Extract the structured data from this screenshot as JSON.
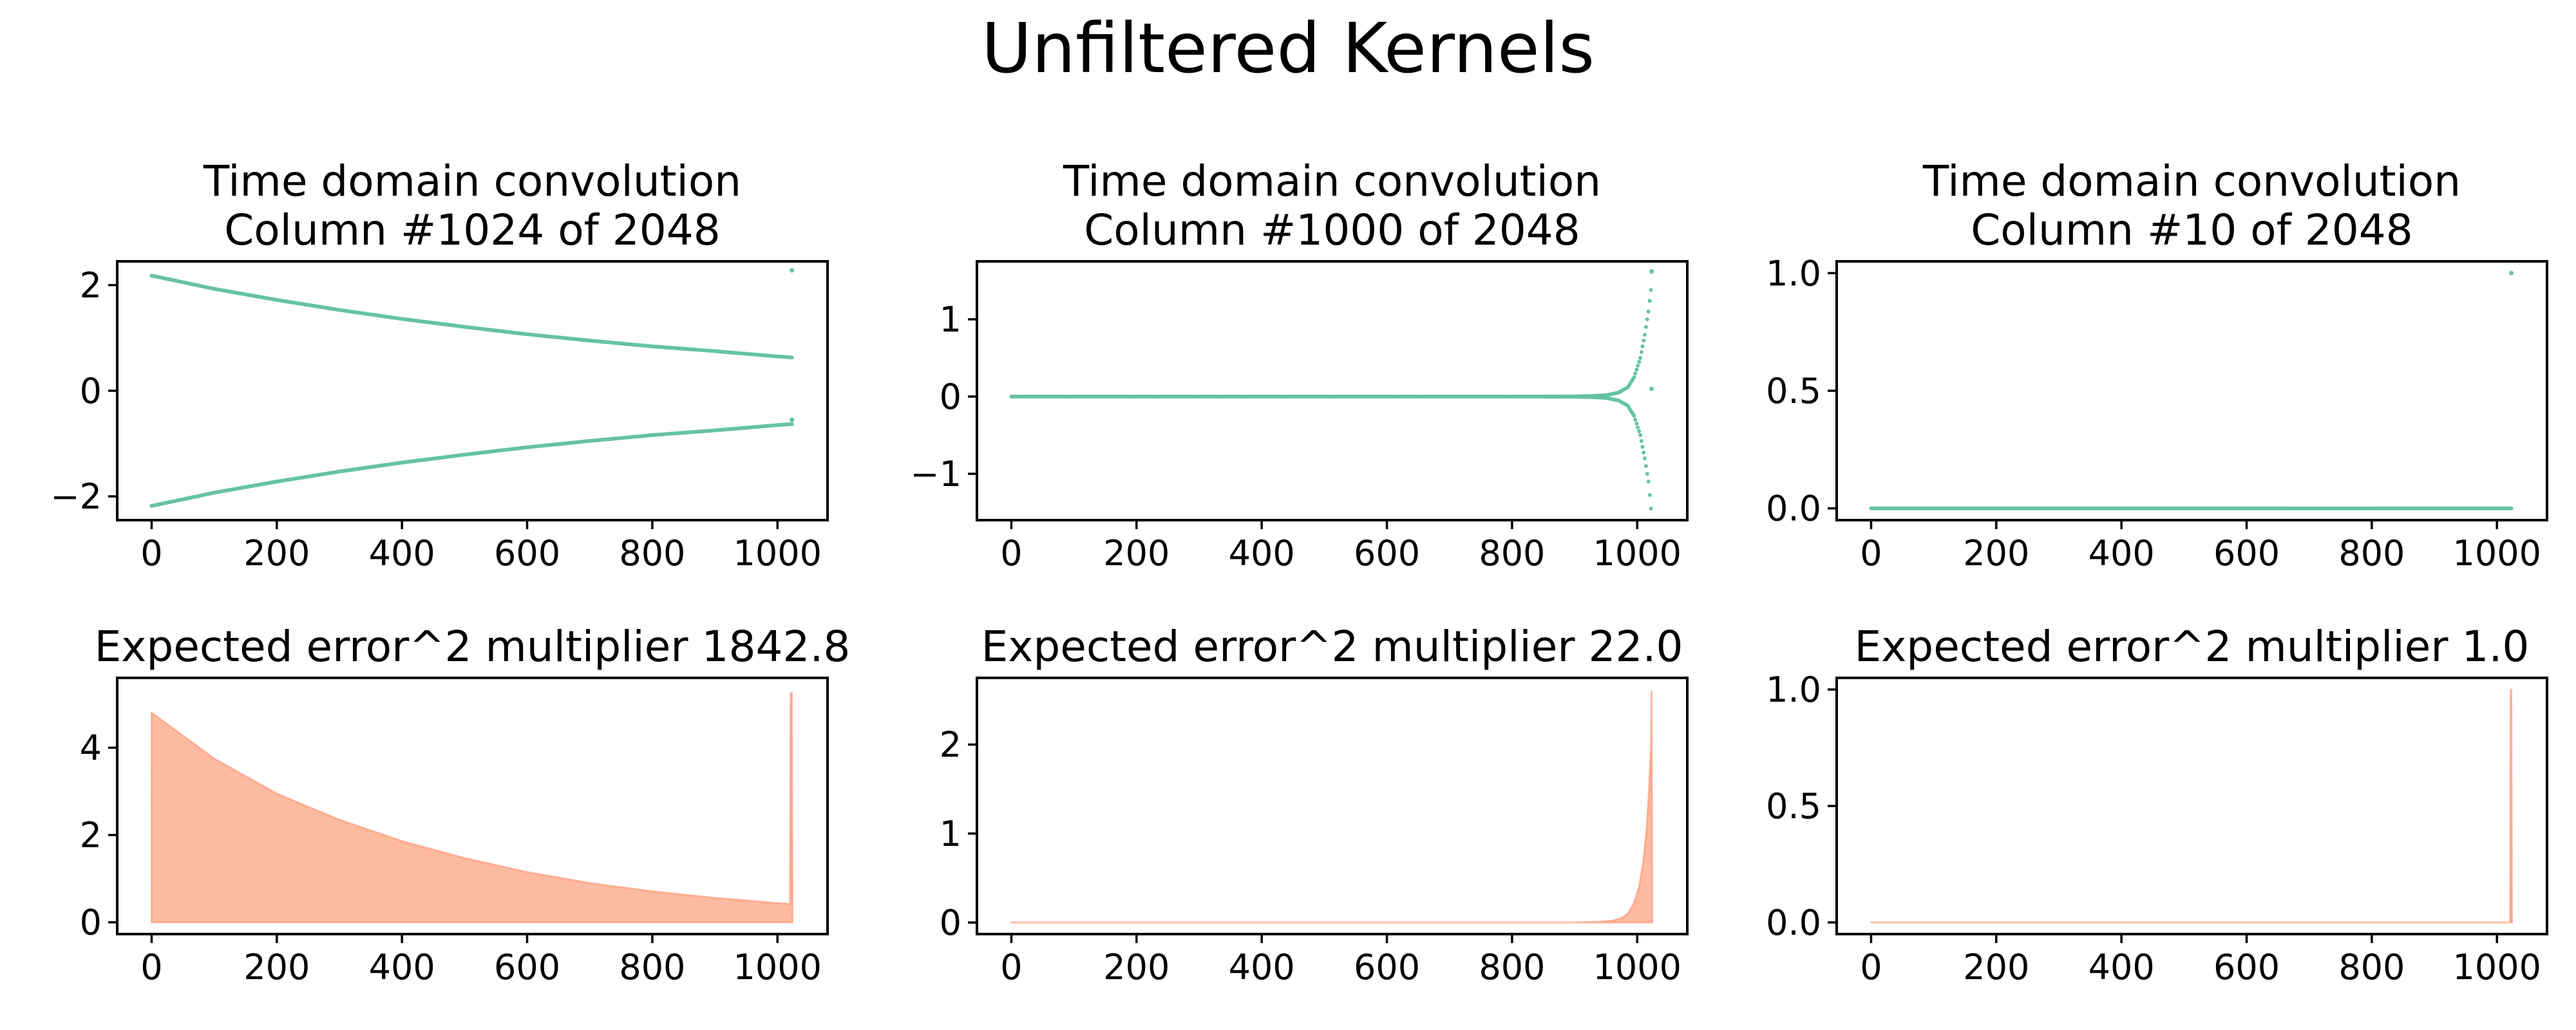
{
  "figure": {
    "title": "Unfiltered Kernels",
    "colors": {
      "scatter": "#66c2a5",
      "area_fill": "#fcbba1",
      "area_line": "#fc9272"
    }
  },
  "chart_data": [
    {
      "type": "scatter",
      "title_lines": [
        "Time domain convolution",
        "Column #1024 of 2048"
      ],
      "xlabel": "",
      "ylabel": "",
      "xlim": [
        -55,
        1080
      ],
      "ylim": [
        -2.45,
        2.45
      ],
      "xticks": [
        0,
        200,
        400,
        600,
        800,
        1000
      ],
      "xtick_labels": [
        "0",
        "200",
        "400",
        "600",
        "800",
        "1000"
      ],
      "yticks": [
        -2,
        0,
        2
      ],
      "ytick_labels": [
        "−2",
        "0",
        "2"
      ],
      "series": [
        {
          "x": [
            0,
            100,
            200,
            300,
            400,
            500,
            600,
            700,
            800,
            900,
            1000,
            1023
          ],
          "y": [
            2.18,
            1.93,
            1.72,
            1.53,
            1.36,
            1.21,
            1.07,
            0.95,
            0.84,
            0.75,
            0.65,
            0.63
          ]
        },
        {
          "x": [
            0,
            100,
            200,
            300,
            400,
            500,
            600,
            700,
            800,
            900,
            1000,
            1023
          ],
          "y": [
            -2.18,
            -1.93,
            -1.72,
            -1.53,
            -1.36,
            -1.21,
            -1.07,
            -0.95,
            -0.84,
            -0.75,
            -0.65,
            -0.63
          ]
        }
      ],
      "points": [
        {
          "x": 1023,
          "y": 2.28
        },
        {
          "x": 1023,
          "y": -0.55
        }
      ]
    },
    {
      "type": "scatter",
      "title_lines": [
        "Time domain convolution",
        "Column #1000 of 2048"
      ],
      "xlabel": "",
      "ylabel": "",
      "xlim": [
        -55,
        1080
      ],
      "ylim": [
        -1.6,
        1.75
      ],
      "xticks": [
        0,
        200,
        400,
        600,
        800,
        1000
      ],
      "xtick_labels": [
        "0",
        "200",
        "400",
        "600",
        "800",
        "1000"
      ],
      "yticks": [
        -1,
        0,
        1
      ],
      "ytick_labels": [
        "−1",
        "0",
        "1"
      ],
      "series": [
        {
          "x": [
            0,
            850,
            900,
            930,
            950,
            970,
            985,
            995,
            1005,
            1012,
            1018,
            1022
          ],
          "y": [
            0,
            0,
            0.003,
            0.008,
            0.018,
            0.05,
            0.12,
            0.25,
            0.5,
            0.8,
            1.1,
            1.38
          ]
        },
        {
          "x": [
            0,
            850,
            900,
            930,
            950,
            970,
            985,
            995,
            1005,
            1012,
            1018,
            1022
          ],
          "y": [
            0,
            0,
            -0.003,
            -0.008,
            -0.018,
            -0.05,
            -0.12,
            -0.25,
            -0.5,
            -0.8,
            -1.1,
            -1.45
          ]
        }
      ],
      "points": [
        {
          "x": 1023,
          "y": 1.62
        },
        {
          "x": 1023,
          "y": 0.1
        }
      ]
    },
    {
      "type": "scatter",
      "title_lines": [
        "Time domain convolution",
        "Column #10 of 2048"
      ],
      "xlabel": "",
      "ylabel": "",
      "xlim": [
        -55,
        1080
      ],
      "ylim": [
        -0.05,
        1.05
      ],
      "xticks": [
        0,
        200,
        400,
        600,
        800,
        1000
      ],
      "xtick_labels": [
        "0",
        "200",
        "400",
        "600",
        "800",
        "1000"
      ],
      "yticks": [
        0,
        0.5,
        1
      ],
      "ytick_labels": [
        "0.0",
        "0.5",
        "1.0"
      ],
      "series": [
        {
          "x": [
            0,
            1023
          ],
          "y": [
            0,
            0
          ]
        }
      ],
      "points": [
        {
          "x": 1023,
          "y": 1.0
        }
      ]
    },
    {
      "type": "area",
      "title_lines": [
        "Expected error^2 multiplier 1842.8"
      ],
      "xlabel": "",
      "ylabel": "",
      "xlim": [
        -55,
        1080
      ],
      "ylim": [
        -0.27,
        5.6
      ],
      "xticks": [
        0,
        200,
        400,
        600,
        800,
        1000
      ],
      "xtick_labels": [
        "0",
        "200",
        "400",
        "600",
        "800",
        "1000"
      ],
      "yticks": [
        0,
        2,
        4
      ],
      "ytick_labels": [
        "0",
        "2",
        "4"
      ],
      "x": [
        0,
        100,
        200,
        300,
        400,
        500,
        600,
        700,
        800,
        900,
        1000,
        1020,
        1021,
        1023,
        1024
      ],
      "y": [
        4.8,
        3.75,
        2.95,
        2.35,
        1.86,
        1.47,
        1.15,
        0.9,
        0.71,
        0.56,
        0.44,
        0.42,
        5.25,
        5.25,
        0
      ]
    },
    {
      "type": "area",
      "title_lines": [
        "Expected error^2 multiplier 22.0"
      ],
      "xlabel": "",
      "ylabel": "",
      "xlim": [
        -55,
        1080
      ],
      "ylim": [
        -0.13,
        2.75
      ],
      "xticks": [
        0,
        200,
        400,
        600,
        800,
        1000
      ],
      "xtick_labels": [
        "0",
        "200",
        "400",
        "600",
        "800",
        "1000"
      ],
      "yticks": [
        0,
        1,
        2
      ],
      "ytick_labels": [
        "0",
        "1",
        "2"
      ],
      "x": [
        0,
        900,
        940,
        960,
        975,
        985,
        995,
        1003,
        1010,
        1015,
        1019,
        1022,
        1023,
        1024
      ],
      "y": [
        0,
        0,
        0.01,
        0.02,
        0.05,
        0.1,
        0.22,
        0.4,
        0.7,
        1.05,
        1.5,
        2.0,
        2.6,
        0
      ]
    },
    {
      "type": "area",
      "title_lines": [
        "Expected error^2 multiplier 1.0"
      ],
      "xlabel": "",
      "ylabel": "",
      "xlim": [
        -55,
        1080
      ],
      "ylim": [
        -0.05,
        1.05
      ],
      "xticks": [
        0,
        200,
        400,
        600,
        800,
        1000
      ],
      "xtick_labels": [
        "0",
        "200",
        "400",
        "600",
        "800",
        "1000"
      ],
      "yticks": [
        0,
        0.5,
        1
      ],
      "ytick_labels": [
        "0.0",
        "0.5",
        "1.0"
      ],
      "x": [
        0,
        1021,
        1022,
        1023,
        1024
      ],
      "y": [
        0,
        0,
        1.0,
        1.0,
        0
      ]
    }
  ]
}
